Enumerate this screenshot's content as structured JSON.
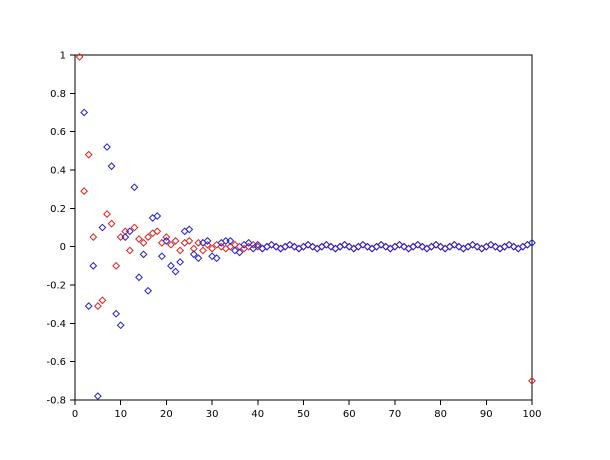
{
  "chart_data": {
    "type": "scatter",
    "title": "",
    "xlabel": "",
    "ylabel": "",
    "xlim": [
      0,
      100
    ],
    "ylim": [
      -0.8,
      1
    ],
    "grid": false,
    "legend_position": "none",
    "marker": "open-diamond",
    "xticks": {
      "values": [
        0,
        10,
        20,
        30,
        40,
        50,
        60,
        70,
        80,
        90,
        100
      ],
      "labels": [
        "0",
        "10",
        "20",
        "30",
        "40",
        "50",
        "60",
        "70",
        "80",
        "90",
        "100"
      ]
    },
    "yticks": {
      "values": [
        -0.8,
        -0.6,
        -0.4,
        -0.2,
        0,
        0.2,
        0.4,
        0.6,
        0.8,
        1
      ],
      "labels": [
        "-0.8",
        "-0.6",
        "-0.4",
        "-0.2",
        "0",
        "0.2",
        "0.4",
        "0.6",
        "0.8",
        "1"
      ]
    },
    "x": [
      1,
      2,
      3,
      4,
      5,
      6,
      7,
      8,
      9,
      10,
      11,
      12,
      13,
      14,
      15,
      16,
      17,
      18,
      19,
      20,
      21,
      22,
      23,
      24,
      25,
      26,
      27,
      28,
      29,
      30,
      31,
      32,
      33,
      34,
      35,
      36,
      37,
      38,
      39,
      40,
      41,
      42,
      43,
      44,
      45,
      46,
      47,
      48,
      49,
      50,
      51,
      52,
      53,
      54,
      55,
      56,
      57,
      58,
      59,
      60,
      61,
      62,
      63,
      64,
      65,
      66,
      67,
      68,
      69,
      70,
      71,
      72,
      73,
      74,
      75,
      76,
      77,
      78,
      79,
      80,
      81,
      82,
      83,
      84,
      85,
      86,
      87,
      88,
      89,
      90,
      91,
      92,
      93,
      94,
      95,
      96,
      97,
      98,
      99,
      100
    ],
    "series": [
      {
        "name": "red-series",
        "color": "#e02020",
        "values": [
          0.99,
          0.29,
          0.48,
          0.05,
          -0.31,
          -0.28,
          0.17,
          0.12,
          -0.1,
          0.05,
          0.08,
          -0.02,
          0.1,
          0.04,
          0.02,
          0.05,
          0.07,
          0.08,
          0.02,
          0.05,
          0.01,
          0.03,
          -0.02,
          0.02,
          0.03,
          -0.01,
          0.02,
          -0.02,
          0.01,
          -0.01,
          0.01,
          0,
          -0.01,
          0,
          0.01,
          0,
          -0.01,
          0,
          0.01,
          0,
          -0.01,
          0,
          0.01,
          0,
          -0.01,
          0,
          0.01,
          0,
          -0.01,
          0,
          0.01,
          0,
          -0.01,
          0,
          0.01,
          0,
          -0.01,
          0,
          0.01,
          0,
          -0.01,
          0,
          0.01,
          0,
          -0.01,
          0,
          0.01,
          0,
          -0.01,
          0,
          0.01,
          0,
          -0.01,
          0,
          0.01,
          0,
          -0.01,
          0,
          0.01,
          0,
          -0.01,
          0,
          0.01,
          0,
          -0.01,
          0,
          0.01,
          0,
          -0.01,
          0,
          0.01,
          0,
          -0.01,
          0,
          0.01,
          0,
          -0.01,
          0,
          0.01,
          -0.7
        ]
      },
      {
        "name": "blue-series",
        "color": "#2020d0",
        "values": [
          null,
          0.7,
          -0.31,
          -0.1,
          -0.78,
          0.1,
          0.52,
          0.42,
          -0.35,
          -0.41,
          0.05,
          0.08,
          0.31,
          -0.16,
          -0.04,
          -0.23,
          0.15,
          0.16,
          -0.05,
          0.03,
          -0.1,
          -0.13,
          -0.08,
          0.08,
          0.09,
          -0.04,
          -0.06,
          0.02,
          0.03,
          -0.05,
          -0.06,
          0.02,
          0.03,
          0.03,
          -0.02,
          -0.03,
          0.01,
          0.02,
          -0.01,
          0.01,
          -0.01,
          0,
          0.01,
          0,
          -0.01,
          0,
          0.01,
          0,
          -0.01,
          0,
          0.01,
          0,
          -0.01,
          0,
          0.01,
          0,
          -0.01,
          0,
          0.01,
          0,
          -0.01,
          0,
          0.01,
          0,
          -0.01,
          0,
          0.01,
          0,
          -0.01,
          0,
          0.01,
          0,
          -0.01,
          0,
          0.01,
          0,
          -0.01,
          0,
          0.01,
          0,
          -0.01,
          0,
          0.01,
          0,
          -0.01,
          0,
          0.01,
          0,
          -0.01,
          0,
          0.01,
          0,
          -0.01,
          0,
          0.01,
          0,
          -0.01,
          0,
          0.01,
          0.02
        ]
      }
    ],
    "axis_color": "#000000",
    "background_color": "#ffffff"
  }
}
